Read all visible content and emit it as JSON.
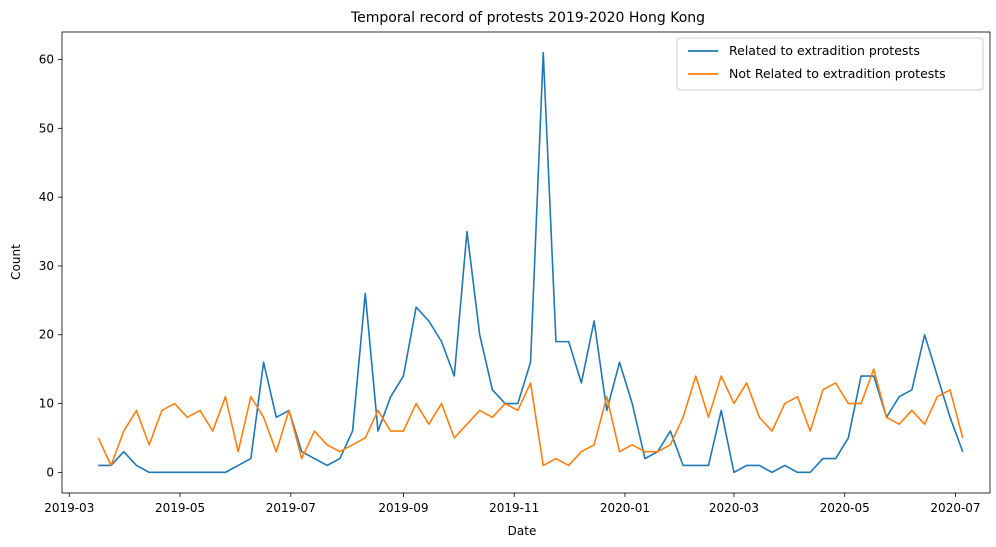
{
  "chart_data": {
    "type": "line",
    "title": "Temporal record of protests 2019-2020 Hong Kong",
    "xlabel": "Date",
    "ylabel": "Count",
    "x_type": "date",
    "xlim": [
      "2019-02-25",
      "2020-07-20"
    ],
    "ylim": [
      -3,
      64
    ],
    "x_ticks": [
      "2019-03-01",
      "2019-05-01",
      "2019-07-01",
      "2019-09-01",
      "2019-11-01",
      "2020-01-01",
      "2020-03-01",
      "2020-05-01",
      "2020-07-01"
    ],
    "x_tick_labels": [
      "2019-03",
      "2019-05",
      "2019-07",
      "2019-09",
      "2019-11",
      "2020-01",
      "2020-03",
      "2020-05",
      "2020-07"
    ],
    "y_ticks": [
      0,
      10,
      20,
      30,
      40,
      50,
      60
    ],
    "grid": false,
    "legend_position": "top-right",
    "x": [
      "2019-03-17",
      "2019-03-24",
      "2019-03-31",
      "2019-04-07",
      "2019-04-14",
      "2019-04-21",
      "2019-04-28",
      "2019-05-05",
      "2019-05-12",
      "2019-05-19",
      "2019-05-26",
      "2019-06-02",
      "2019-06-09",
      "2019-06-16",
      "2019-06-23",
      "2019-06-30",
      "2019-07-07",
      "2019-07-14",
      "2019-07-21",
      "2019-07-28",
      "2019-08-04",
      "2019-08-11",
      "2019-08-18",
      "2019-08-25",
      "2019-09-01",
      "2019-09-08",
      "2019-09-15",
      "2019-09-22",
      "2019-09-29",
      "2019-10-06",
      "2019-10-13",
      "2019-10-20",
      "2019-10-27",
      "2019-11-03",
      "2019-11-10",
      "2019-11-17",
      "2019-11-24",
      "2019-12-01",
      "2019-12-08",
      "2019-12-15",
      "2019-12-22",
      "2019-12-29",
      "2020-01-05",
      "2020-01-12",
      "2020-01-19",
      "2020-01-26",
      "2020-02-02",
      "2020-02-09",
      "2020-02-16",
      "2020-02-23",
      "2020-03-01",
      "2020-03-08",
      "2020-03-15",
      "2020-03-22",
      "2020-03-29",
      "2020-04-05",
      "2020-04-12",
      "2020-04-19",
      "2020-04-26",
      "2020-05-03",
      "2020-05-10",
      "2020-05-17",
      "2020-05-24",
      "2020-05-31",
      "2020-06-07",
      "2020-06-14",
      "2020-06-21",
      "2020-06-28",
      "2020-07-05"
    ],
    "series": [
      {
        "name": "Related to extradition protests",
        "color": "#1f77b4",
        "values": [
          1,
          1,
          3,
          1,
          0,
          0,
          0,
          0,
          0,
          0,
          0,
          1,
          2,
          16,
          8,
          9,
          3,
          2,
          1,
          2,
          6,
          26,
          6,
          11,
          14,
          24,
          22,
          19,
          14,
          35,
          20,
          12,
          10,
          10,
          16,
          61,
          19,
          19,
          13,
          22,
          9,
          16,
          10,
          2,
          3,
          6,
          1,
          1,
          1,
          9,
          0,
          1,
          1,
          0,
          1,
          0,
          0,
          2,
          2,
          5,
          14,
          14,
          8,
          11,
          12,
          20,
          14,
          8,
          3
        ]
      },
      {
        "name": "Not Related to extradition protests",
        "color": "#ff7f0e",
        "values": [
          5,
          1,
          6,
          9,
          4,
          9,
          10,
          8,
          9,
          6,
          11,
          3,
          11,
          8,
          3,
          9,
          2,
          6,
          4,
          3,
          4,
          5,
          9,
          6,
          6,
          10,
          7,
          10,
          5,
          7,
          9,
          8,
          10,
          9,
          13,
          1,
          2,
          1,
          3,
          4,
          11,
          3,
          4,
          3,
          3,
          4,
          8,
          14,
          8,
          14,
          10,
          13,
          8,
          6,
          10,
          11,
          6,
          12,
          13,
          10,
          10,
          15,
          8,
          7,
          9,
          7,
          11,
          12,
          5
        ]
      }
    ]
  }
}
